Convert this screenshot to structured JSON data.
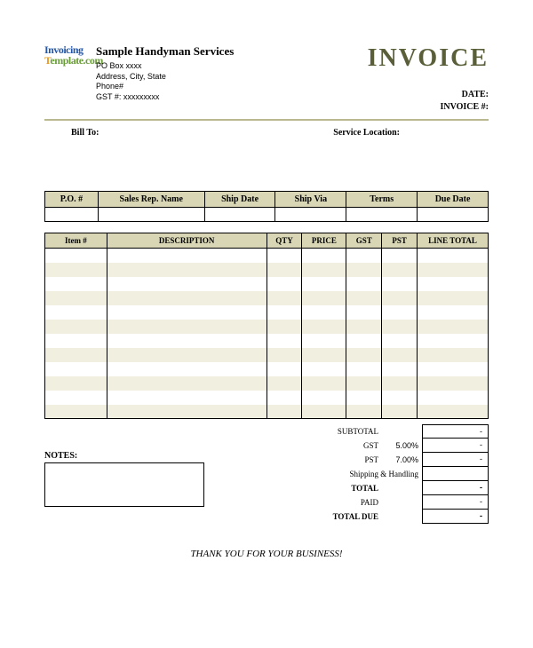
{
  "colors": {
    "header_band": "#d8d6b4",
    "stripe": "#f0efe0",
    "divider": "#b9b88e",
    "invoice_title": "#5a5f3a",
    "logo_blue": "#2456a6",
    "logo_orange": "#e69c24",
    "logo_green": "#6a9c3a",
    "border": "#000000",
    "background": "#ffffff"
  },
  "logo": {
    "line1": "Invoicing",
    "line2a": "T",
    "line2b": "emplate.com"
  },
  "company": {
    "name": "Sample Handyman Services",
    "lines": [
      "PO Box xxxx",
      "Address, City, State",
      "Phone#",
      "GST #: xxxxxxxxx"
    ]
  },
  "header": {
    "invoice_word": "INVOICE",
    "date_label": "DATE:",
    "invno_label": "INVOICE #:",
    "date_value": "",
    "invno_value": ""
  },
  "address": {
    "bill_to_label": "Bill To:",
    "bill_to_value": "",
    "service_loc_label": "Service Location:",
    "service_loc_value": ""
  },
  "order_table": {
    "columns": [
      "P.O. #",
      "Sales Rep. Name",
      "Ship Date",
      "Ship Via",
      "Terms",
      "Due Date"
    ],
    "widths_pct": [
      12,
      24,
      16,
      16,
      16,
      16
    ],
    "row": [
      "",
      "",
      "",
      "",
      "",
      ""
    ]
  },
  "line_table": {
    "columns": [
      "Item #",
      "DESCRIPTION",
      "QTY",
      "PRICE",
      "GST",
      "PST",
      "LINE TOTAL"
    ],
    "row_count": 12,
    "stripe_start": 1,
    "rows": []
  },
  "notes": {
    "label": "NOTES:",
    "value": ""
  },
  "totals": {
    "rows": [
      {
        "label": "SUBTOTAL",
        "mid": "",
        "value": "-",
        "bold": false
      },
      {
        "label": "GST",
        "mid": "5.00%",
        "value": "-",
        "bold": false
      },
      {
        "label": "PST",
        "mid": "7.00%",
        "value": "-",
        "bold": false
      },
      {
        "label": "Shipping & Handling",
        "mid": "",
        "value": "",
        "bold": false,
        "wide": true
      },
      {
        "label": "TOTAL",
        "mid": "",
        "value": "-",
        "bold": true
      },
      {
        "label": "PAID",
        "mid": "",
        "value": "-",
        "bold": false
      },
      {
        "label": "TOTAL DUE",
        "mid": "",
        "value": "-",
        "bold": true
      }
    ]
  },
  "footer": {
    "thanks": "THANK YOU FOR YOUR BUSINESS!"
  }
}
